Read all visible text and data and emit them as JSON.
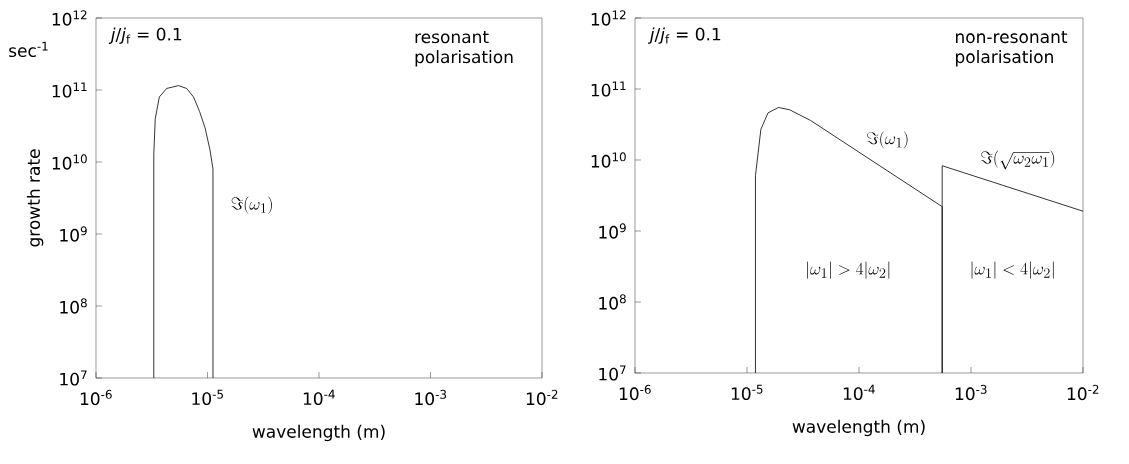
{
  "chart_data": [
    {
      "type": "line",
      "xlabel": "wavelength (m)",
      "ylabel": "growth rate",
      "log": "xy",
      "xlim": [
        1e-06,
        0.01
      ],
      "ylim": [
        10000000.0,
        1000000000000.0
      ],
      "xticks": [
        {
          "value": 1e-06,
          "label": "10$^{-6}$"
        },
        {
          "value": 1e-05,
          "label": "10$^{-5}$"
        },
        {
          "value": 0.0001,
          "label": "10$^{-4}$"
        },
        {
          "value": 0.001,
          "label": "10$^{-3}$"
        },
        {
          "value": 0.01,
          "label": "10$^{-2}$"
        }
      ],
      "yticks": [
        {
          "value": 10000000.0,
          "label": "10$^{7}$"
        },
        {
          "value": 100000000.0,
          "label": "10$^{8}$"
        },
        {
          "value": 1000000000.0,
          "label": "10$^{9}$"
        },
        {
          "value": 10000000000.0,
          "label": "10$^{10}$"
        },
        {
          "value": 100000000000.0,
          "label": "10$^{11}$"
        },
        {
          "value": 1000000000000.0,
          "label": "10$^{12}$"
        }
      ],
      "series": [
        {
          "color": "#000000",
          "x": [
            3.3e-06,
            3.3e-06,
            3.4e-06,
            3.7e-06,
            4.3e-06,
            5.5e-06,
            6.5e-06,
            7.5e-06,
            8.5e-06,
            9.5e-06,
            1.05e-05,
            1.12e-05,
            1.12e-05
          ],
          "values": [
            10000000.0,
            13000000000.0,
            40000000000.0,
            80000000000.0,
            105000000000.0,
            115000000000.0,
            105000000000.0,
            80000000000.0,
            50000000000.0,
            30000000000.0,
            15000000000.0,
            8000000000.0,
            10000000.0
          ]
        }
      ],
      "annotations": [
        "sec$^{-1}$",
        "*j*/*j*$_{f}$ = 0.1",
        "resonant polarisation",
        "\\Im(\\omega_1)"
      ]
    },
    {
      "type": "line",
      "xlabel": "wavelength (m)",
      "log": "xy",
      "xlim": [
        1e-06,
        0.01
      ],
      "ylim": [
        10000000.0,
        1000000000000.0
      ],
      "xticks": [
        {
          "value": 1e-06,
          "label": "10$^{-6}$"
        },
        {
          "value": 1e-05,
          "label": "10$^{-5}$"
        },
        {
          "value": 0.0001,
          "label": "10$^{-4}$"
        },
        {
          "value": 0.001,
          "label": "10$^{-3}$"
        },
        {
          "value": 0.01,
          "label": "10$^{-2}$"
        }
      ],
      "yticks": [
        {
          "value": 10000000.0,
          "label": "10$^{7}$"
        },
        {
          "value": 100000000.0,
          "label": "10$^{8}$"
        },
        {
          "value": 1000000000.0,
          "label": "10$^{9}$"
        },
        {
          "value": 10000000000.0,
          "label": "10$^{10}$"
        },
        {
          "value": 100000000000.0,
          "label": "10$^{11}$"
        },
        {
          "value": 1000000000000.0,
          "label": "10$^{12}$"
        }
      ],
      "series": [
        {
          "color": "#000000",
          "x": [
            1.19e-05,
            1.19e-05,
            1.33e-05,
            1.54e-05,
            1.91e-05,
            2.4e-05,
            3.7e-05,
            0.000553,
            0.000553
          ],
          "values": [
            10000000.0,
            6000000000.0,
            27000000000.0,
            46000000000.0,
            55000000000.0,
            51000000000.0,
            36000000000.0,
            2200000000.0,
            10000000.0
          ]
        },
        {
          "color": "#000000",
          "x": [
            0.000553,
            0.000553,
            0.01
          ],
          "values": [
            10000000.0,
            8300000000.0,
            1900000000.0
          ]
        }
      ],
      "annotations": [
        "*j*/*j*$_{f}$ = 0.1",
        "non-resonant polarisation",
        "\\Im(\\omega_1)",
        "\\Im(\\sqrt{\\omega_2\\omega_1})",
        "|\\omega_1| > 4|\\omega_2|",
        "|\\omega_1| < 4|\\omega_2|"
      ]
    }
  ]
}
